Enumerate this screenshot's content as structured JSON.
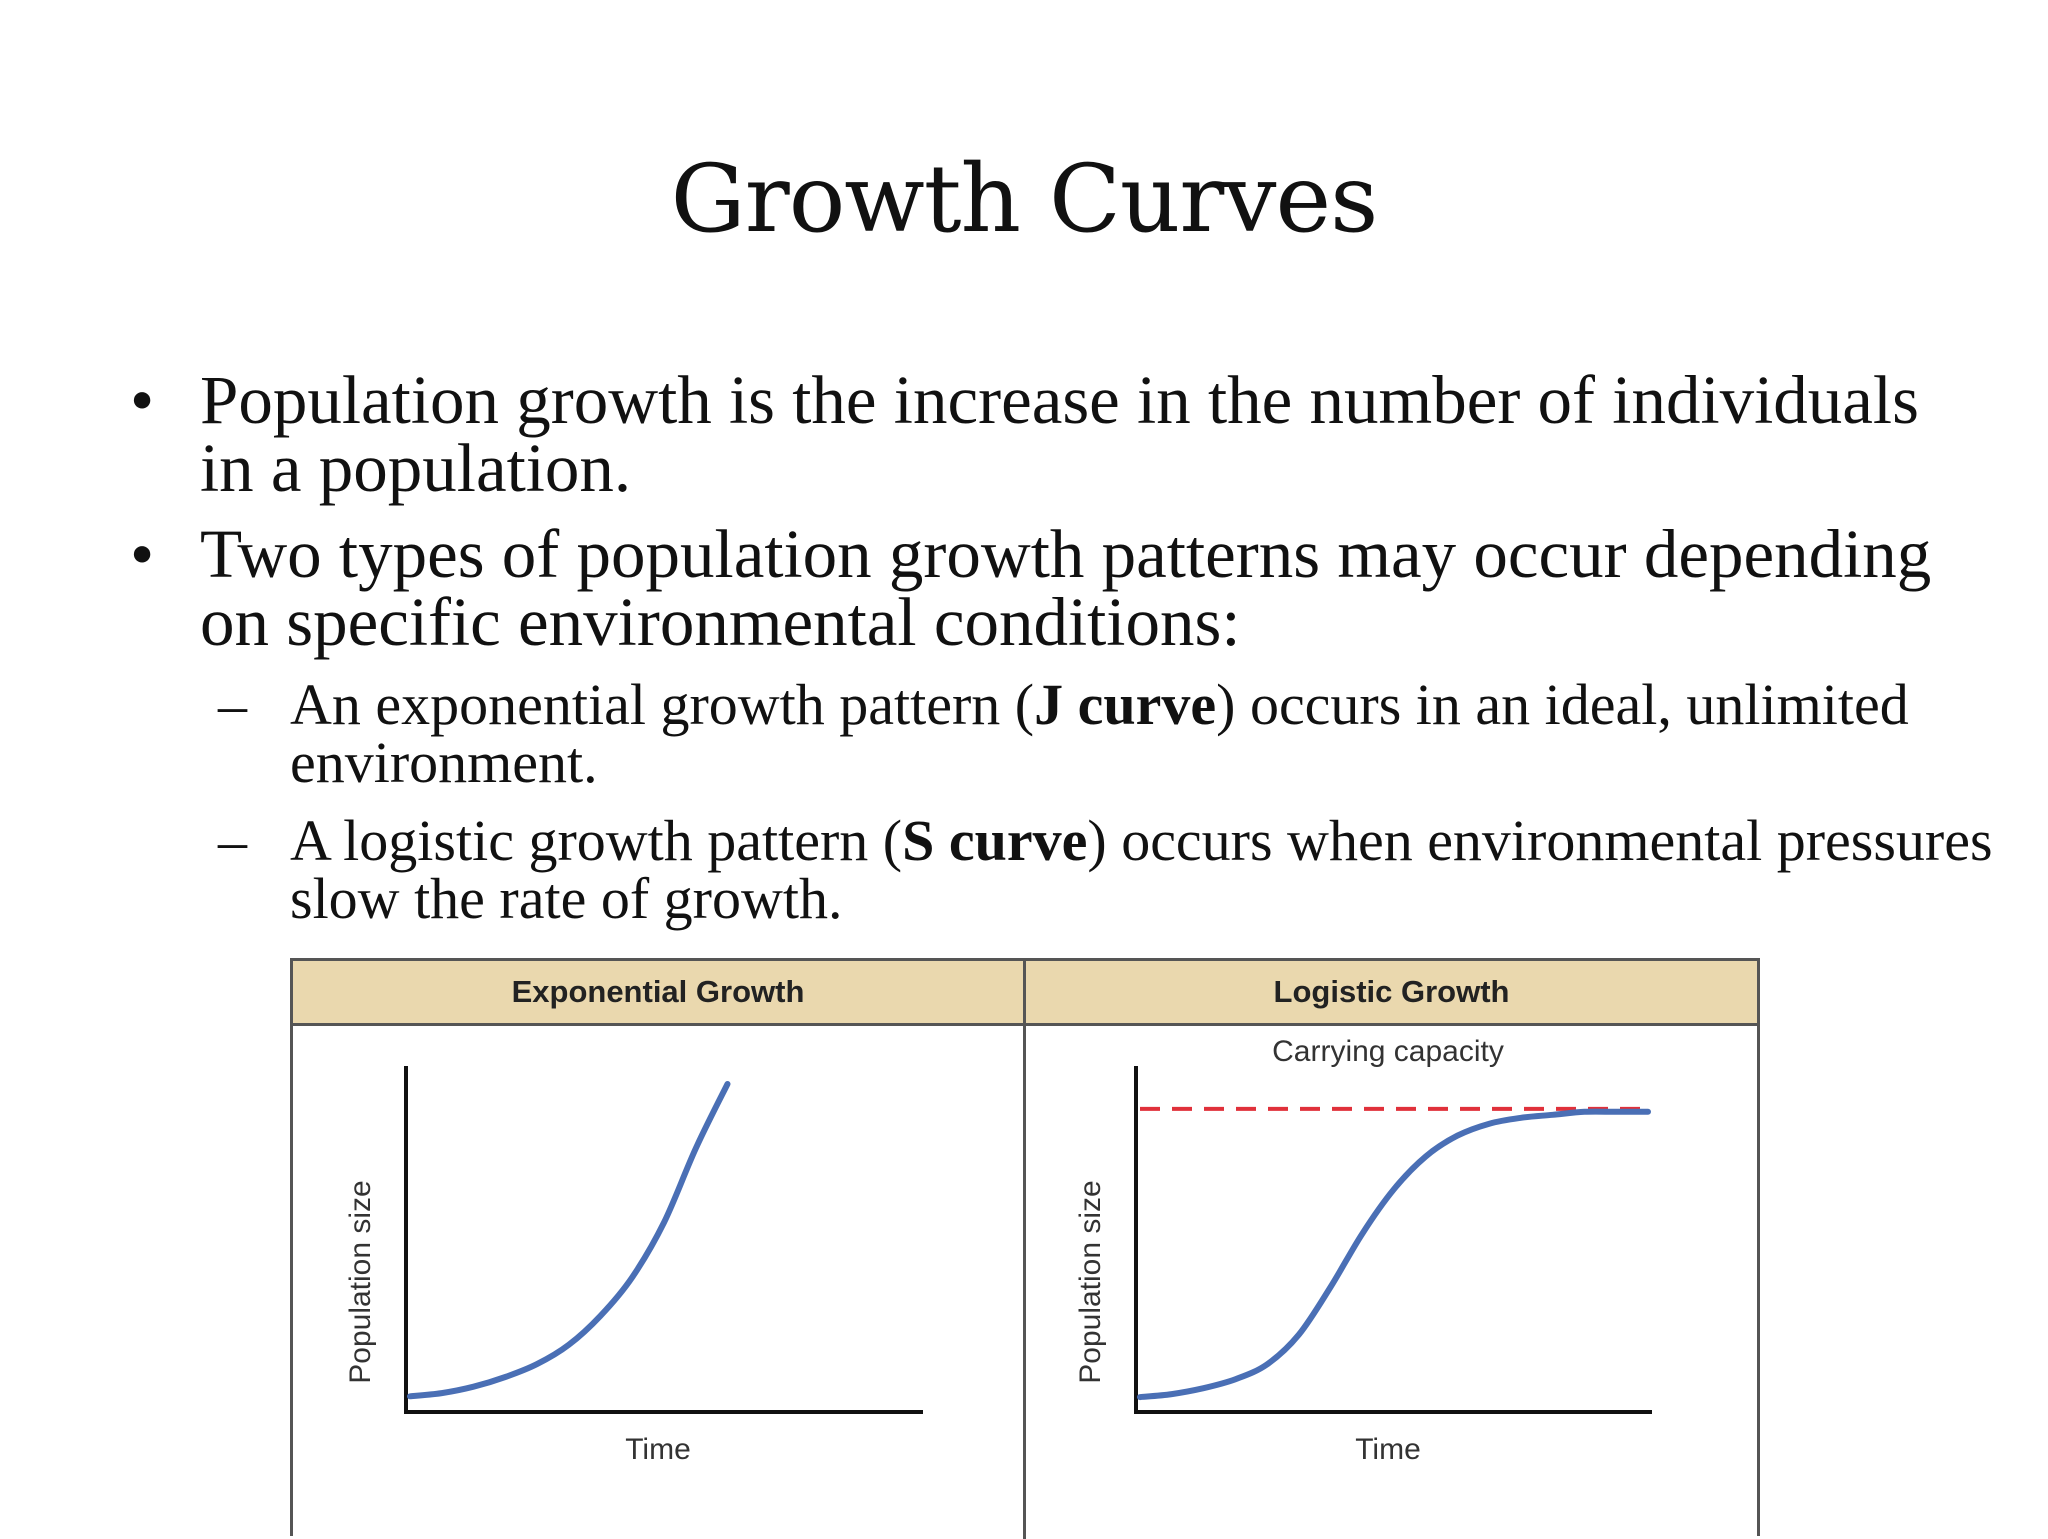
{
  "title": "Growth Curves",
  "bullets": [
    {
      "mark": "•",
      "text": "Population growth is the increase in the number of individuals in a population."
    },
    {
      "mark": "•",
      "text": "Two types of population growth patterns may occur depending on specific environmental conditions:"
    }
  ],
  "sub_bullets": [
    {
      "mark": "–",
      "before": "An exponential growth pattern (",
      "bold": "J curve",
      "after": ") occurs in an ideal, unlimited environment."
    },
    {
      "mark": "–",
      "before": "A logistic growth pattern (",
      "bold": "S curve",
      "after": ") occurs when environmental pressures slow the rate of growth."
    }
  ],
  "chart_data": [
    {
      "type": "line",
      "title": "Exponential Growth",
      "xlabel": "Time",
      "ylabel": "Population size",
      "colors": {
        "curve": "#4a6fb5",
        "header": "#ead8ae"
      },
      "series": [
        {
          "x": [
            0,
            1,
            2,
            3,
            4,
            5,
            6,
            7,
            8,
            9,
            10
          ],
          "values": [
            3,
            4,
            6,
            9,
            13,
            19,
            28,
            40,
            57,
            80,
            100
          ]
        }
      ],
      "ylim": [
        0,
        100
      ],
      "xlim": [
        0,
        16
      ]
    },
    {
      "type": "line",
      "title": "Logistic Growth",
      "xlabel": "Time",
      "ylabel": "Population size",
      "annotation": "Carrying capacity",
      "carrying_capacity": 100,
      "colors": {
        "curve": "#4a6fb5",
        "capacity_line": "#e0303a",
        "header": "#ead8ae"
      },
      "series": [
        {
          "x": [
            0,
            1,
            2,
            3,
            4,
            5,
            6,
            7,
            8,
            9,
            10,
            11,
            12,
            13,
            14,
            15,
            16
          ],
          "values": [
            3,
            4,
            6,
            9,
            14,
            24,
            40,
            58,
            73,
            84,
            91,
            95,
            97,
            98,
            99,
            99,
            99
          ]
        }
      ],
      "ylim": [
        0,
        105
      ],
      "xlim": [
        0,
        16
      ]
    }
  ]
}
